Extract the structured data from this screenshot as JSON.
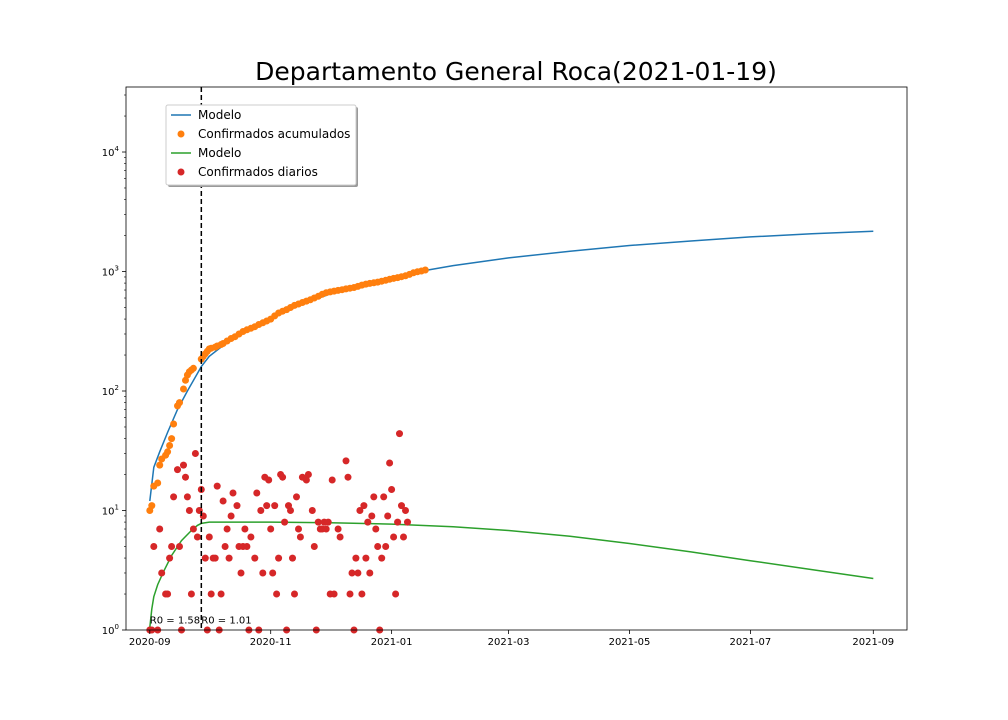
{
  "chart_data": {
    "type": "scatter",
    "title": "Departamento General Roca(2021-01-19)",
    "xlabel": "",
    "ylabel": "",
    "yscale": "log",
    "ylim": [
      1,
      35000
    ],
    "xlim": [
      "2020-08-20",
      "2021-09-18"
    ],
    "x_ticks": [
      "2020-09-01",
      "2020-11-01",
      "2021-01-01",
      "2021-03-01",
      "2021-05-01",
      "2021-07-01",
      "2021-09-01"
    ],
    "x_tick_labels": [
      "2020-09",
      "2020-11",
      "2021-01",
      "2021-03",
      "2021-05",
      "2021-07",
      "2021-09"
    ],
    "y_ticks": [
      1,
      10,
      100,
      1000,
      10000
    ],
    "y_tick_labels": [
      {
        "base": "10",
        "exp": "0"
      },
      {
        "base": "10",
        "exp": "1"
      },
      {
        "base": "10",
        "exp": "2"
      },
      {
        "base": "10",
        "exp": "3"
      },
      {
        "base": "10",
        "exp": "4"
      }
    ],
    "vline": {
      "x": "2020-09-27",
      "style": "dashed",
      "color": "#000000"
    },
    "annotations": [
      {
        "text": "R0 = 1.58",
        "x": "2020-09-01",
        "y": 1.05
      },
      {
        "text": "R0 = 1.01",
        "x": "2020-09-27",
        "y": 1.05
      }
    ],
    "legend": {
      "position": "top-left",
      "entries": [
        {
          "label": "Modelo",
          "marker": "line",
          "color": "#1f77b4"
        },
        {
          "label": "Confirmados acumulados",
          "marker": "dot",
          "color": "#ff7f0e"
        },
        {
          "label": "Modelo",
          "marker": "line",
          "color": "#2ca02c"
        },
        {
          "label": "Confirmados diarios",
          "marker": "dot",
          "color": "#d62728"
        }
      ]
    },
    "series": [
      {
        "name": "Modelo",
        "kind": "line",
        "color": "#1f77b4",
        "points": [
          [
            "2020-09-01",
            12
          ],
          [
            "2020-09-03",
            23
          ],
          [
            "2020-09-06",
            31
          ],
          [
            "2020-09-10",
            45
          ],
          [
            "2020-09-15",
            70
          ],
          [
            "2020-09-20",
            100
          ],
          [
            "2020-09-25",
            140
          ],
          [
            "2020-09-27",
            160
          ],
          [
            "2020-10-01",
            195
          ],
          [
            "2020-10-10",
            255
          ],
          [
            "2020-10-20",
            320
          ],
          [
            "2020-11-01",
            410
          ],
          [
            "2020-11-15",
            520
          ],
          [
            "2020-12-01",
            650
          ],
          [
            "2020-12-15",
            770
          ],
          [
            "2021-01-01",
            900
          ],
          [
            "2021-01-15",
            1000
          ],
          [
            "2021-02-01",
            1120
          ],
          [
            "2021-03-01",
            1300
          ],
          [
            "2021-04-01",
            1480
          ],
          [
            "2021-05-01",
            1650
          ],
          [
            "2021-06-01",
            1800
          ],
          [
            "2021-07-01",
            1950
          ],
          [
            "2021-08-01",
            2070
          ],
          [
            "2021-09-01",
            2170
          ]
        ]
      },
      {
        "name": "Confirmados acumulados",
        "kind": "scatter",
        "color": "#ff7f0e",
        "points": [
          [
            "2020-09-01",
            10
          ],
          [
            "2020-09-02",
            11
          ],
          [
            "2020-09-03",
            16
          ],
          [
            "2020-09-05",
            17
          ],
          [
            "2020-09-06",
            24
          ],
          [
            "2020-09-07",
            27
          ],
          [
            "2020-09-09",
            29
          ],
          [
            "2020-09-10",
            31
          ],
          [
            "2020-09-11",
            35
          ],
          [
            "2020-09-12",
            40
          ],
          [
            "2020-09-13",
            53
          ],
          [
            "2020-09-15",
            75
          ],
          [
            "2020-09-16",
            80
          ],
          [
            "2020-09-18",
            104
          ],
          [
            "2020-09-19",
            123
          ],
          [
            "2020-09-20",
            136
          ],
          [
            "2020-09-21",
            145
          ],
          [
            "2020-09-22",
            150
          ],
          [
            "2020-09-23",
            155
          ],
          [
            "2020-09-27",
            185
          ],
          [
            "2020-09-28",
            195
          ],
          [
            "2020-09-29",
            205
          ],
          [
            "2020-09-30",
            215
          ],
          [
            "2020-10-01",
            225
          ],
          [
            "2020-10-02",
            228
          ],
          [
            "2020-10-04",
            233
          ],
          [
            "2020-10-05",
            238
          ],
          [
            "2020-10-07",
            245
          ],
          [
            "2020-10-08",
            250
          ],
          [
            "2020-10-10",
            262
          ],
          [
            "2020-10-12",
            275
          ],
          [
            "2020-10-14",
            285
          ],
          [
            "2020-10-16",
            300
          ],
          [
            "2020-10-18",
            315
          ],
          [
            "2020-10-20",
            325
          ],
          [
            "2020-10-22",
            335
          ],
          [
            "2020-10-24",
            345
          ],
          [
            "2020-10-26",
            360
          ],
          [
            "2020-10-28",
            372
          ],
          [
            "2020-10-30",
            385
          ],
          [
            "2020-11-01",
            400
          ],
          [
            "2020-11-03",
            425
          ],
          [
            "2020-11-05",
            450
          ],
          [
            "2020-11-07",
            465
          ],
          [
            "2020-11-09",
            480
          ],
          [
            "2020-11-11",
            500
          ],
          [
            "2020-11-13",
            520
          ],
          [
            "2020-11-15",
            535
          ],
          [
            "2020-11-17",
            550
          ],
          [
            "2020-11-19",
            565
          ],
          [
            "2020-11-21",
            580
          ],
          [
            "2020-11-23",
            600
          ],
          [
            "2020-11-25",
            620
          ],
          [
            "2020-11-27",
            645
          ],
          [
            "2020-11-29",
            665
          ],
          [
            "2020-12-01",
            675
          ],
          [
            "2020-12-03",
            685
          ],
          [
            "2020-12-05",
            695
          ],
          [
            "2020-12-07",
            705
          ],
          [
            "2020-12-09",
            715
          ],
          [
            "2020-12-11",
            725
          ],
          [
            "2020-12-13",
            735
          ],
          [
            "2020-12-15",
            750
          ],
          [
            "2020-12-17",
            770
          ],
          [
            "2020-12-19",
            785
          ],
          [
            "2020-12-21",
            795
          ],
          [
            "2020-12-23",
            805
          ],
          [
            "2020-12-25",
            815
          ],
          [
            "2020-12-27",
            830
          ],
          [
            "2020-12-29",
            845
          ],
          [
            "2020-12-31",
            860
          ],
          [
            "2021-01-02",
            875
          ],
          [
            "2021-01-04",
            890
          ],
          [
            "2021-01-06",
            905
          ],
          [
            "2021-01-08",
            920
          ],
          [
            "2021-01-10",
            945
          ],
          [
            "2021-01-12",
            975
          ],
          [
            "2021-01-14",
            995
          ],
          [
            "2021-01-16",
            1010
          ],
          [
            "2021-01-18",
            1030
          ]
        ]
      },
      {
        "name": "Modelo",
        "kind": "line",
        "color": "#2ca02c",
        "points": [
          [
            "2020-09-01",
            1.05
          ],
          [
            "2020-09-02",
            1.5
          ],
          [
            "2020-09-03",
            1.9
          ],
          [
            "2020-09-05",
            2.4
          ],
          [
            "2020-09-08",
            3.1
          ],
          [
            "2020-09-12",
            4.2
          ],
          [
            "2020-09-17",
            5.6
          ],
          [
            "2020-09-22",
            6.8
          ],
          [
            "2020-09-25",
            7.5
          ],
          [
            "2020-09-27",
            7.8
          ],
          [
            "2020-10-01",
            8.0
          ],
          [
            "2020-10-15",
            8.0
          ],
          [
            "2020-11-01",
            8.0
          ],
          [
            "2020-12-01",
            7.9
          ],
          [
            "2021-01-01",
            7.7
          ],
          [
            "2021-02-01",
            7.3
          ],
          [
            "2021-03-01",
            6.8
          ],
          [
            "2021-04-01",
            6.1
          ],
          [
            "2021-05-01",
            5.3
          ],
          [
            "2021-06-01",
            4.5
          ],
          [
            "2021-07-01",
            3.8
          ],
          [
            "2021-08-01",
            3.2
          ],
          [
            "2021-09-01",
            2.7
          ]
        ]
      },
      {
        "name": "Confirmados diarios",
        "kind": "scatter",
        "color": "#d62728",
        "points": [
          [
            "2020-09-01",
            1
          ],
          [
            "2020-09-02",
            1
          ],
          [
            "2020-09-03",
            5
          ],
          [
            "2020-09-05",
            1
          ],
          [
            "2020-09-06",
            7
          ],
          [
            "2020-09-07",
            3
          ],
          [
            "2020-09-09",
            2
          ],
          [
            "2020-09-10",
            2
          ],
          [
            "2020-09-11",
            4
          ],
          [
            "2020-09-12",
            5
          ],
          [
            "2020-09-13",
            13
          ],
          [
            "2020-09-15",
            22
          ],
          [
            "2020-09-16",
            5
          ],
          [
            "2020-09-17",
            1
          ],
          [
            "2020-09-18",
            24
          ],
          [
            "2020-09-19",
            19
          ],
          [
            "2020-09-20",
            13
          ],
          [
            "2020-09-21",
            10
          ],
          [
            "2020-09-22",
            2
          ],
          [
            "2020-09-23",
            7
          ],
          [
            "2020-09-24",
            30
          ],
          [
            "2020-09-25",
            6
          ],
          [
            "2020-09-26",
            10
          ],
          [
            "2020-09-27",
            15
          ],
          [
            "2020-09-28",
            9
          ],
          [
            "2020-09-29",
            4
          ],
          [
            "2020-09-30",
            1
          ],
          [
            "2020-10-01",
            6
          ],
          [
            "2020-10-02",
            2
          ],
          [
            "2020-10-03",
            4
          ],
          [
            "2020-10-04",
            4
          ],
          [
            "2020-10-05",
            16
          ],
          [
            "2020-10-06",
            1
          ],
          [
            "2020-10-07",
            2
          ],
          [
            "2020-10-08",
            12
          ],
          [
            "2020-10-09",
            5
          ],
          [
            "2020-10-10",
            7
          ],
          [
            "2020-10-11",
            4
          ],
          [
            "2020-10-12",
            9
          ],
          [
            "2020-10-13",
            14
          ],
          [
            "2020-10-15",
            11
          ],
          [
            "2020-10-16",
            5
          ],
          [
            "2020-10-17",
            3
          ],
          [
            "2020-10-18",
            5
          ],
          [
            "2020-10-19",
            7
          ],
          [
            "2020-10-20",
            5
          ],
          [
            "2020-10-21",
            1
          ],
          [
            "2020-10-22",
            6
          ],
          [
            "2020-10-24",
            4
          ],
          [
            "2020-10-25",
            14
          ],
          [
            "2020-10-26",
            1
          ],
          [
            "2020-10-27",
            10
          ],
          [
            "2020-10-28",
            3
          ],
          [
            "2020-10-29",
            19
          ],
          [
            "2020-10-30",
            11
          ],
          [
            "2020-10-31",
            18
          ],
          [
            "2020-11-01",
            7
          ],
          [
            "2020-11-02",
            3
          ],
          [
            "2020-11-03",
            11
          ],
          [
            "2020-11-04",
            2
          ],
          [
            "2020-11-05",
            4
          ],
          [
            "2020-11-06",
            20
          ],
          [
            "2020-11-07",
            19
          ],
          [
            "2020-11-08",
            8
          ],
          [
            "2020-11-09",
            1
          ],
          [
            "2020-11-10",
            11
          ],
          [
            "2020-11-11",
            10
          ],
          [
            "2020-11-12",
            4
          ],
          [
            "2020-11-13",
            2
          ],
          [
            "2020-11-14",
            13
          ],
          [
            "2020-11-15",
            7
          ],
          [
            "2020-11-16",
            6
          ],
          [
            "2020-11-17",
            19
          ],
          [
            "2020-11-19",
            18
          ],
          [
            "2020-11-20",
            20
          ],
          [
            "2020-11-22",
            10
          ],
          [
            "2020-11-23",
            5
          ],
          [
            "2020-11-24",
            1
          ],
          [
            "2020-11-25",
            8
          ],
          [
            "2020-11-26",
            7
          ],
          [
            "2020-11-27",
            7
          ],
          [
            "2020-11-28",
            8
          ],
          [
            "2020-11-29",
            7
          ],
          [
            "2020-11-30",
            8
          ],
          [
            "2020-12-01",
            2
          ],
          [
            "2020-12-02",
            18
          ],
          [
            "2020-12-03",
            2
          ],
          [
            "2020-12-05",
            7
          ],
          [
            "2020-12-06",
            6
          ],
          [
            "2020-12-09",
            26
          ],
          [
            "2020-12-10",
            19
          ],
          [
            "2020-12-11",
            2
          ],
          [
            "2020-12-12",
            3
          ],
          [
            "2020-12-13",
            1
          ],
          [
            "2020-12-14",
            4
          ],
          [
            "2020-12-15",
            3
          ],
          [
            "2020-12-16",
            10
          ],
          [
            "2020-12-17",
            2
          ],
          [
            "2020-12-18",
            11
          ],
          [
            "2020-12-19",
            4
          ],
          [
            "2020-12-20",
            8
          ],
          [
            "2020-12-21",
            3
          ],
          [
            "2020-12-22",
            9
          ],
          [
            "2020-12-23",
            13
          ],
          [
            "2020-12-24",
            7
          ],
          [
            "2020-12-25",
            5
          ],
          [
            "2020-12-26",
            1
          ],
          [
            "2020-12-27",
            4
          ],
          [
            "2020-12-28",
            13
          ],
          [
            "2020-12-29",
            5
          ],
          [
            "2020-12-30",
            9
          ],
          [
            "2020-12-31",
            25
          ],
          [
            "2021-01-01",
            15
          ],
          [
            "2021-01-02",
            6
          ],
          [
            "2021-01-03",
            2
          ],
          [
            "2021-01-04",
            8
          ],
          [
            "2021-01-05",
            44
          ],
          [
            "2021-01-06",
            11
          ],
          [
            "2021-01-07",
            6
          ],
          [
            "2021-01-08",
            10
          ],
          [
            "2021-01-09",
            8
          ]
        ]
      }
    ]
  }
}
